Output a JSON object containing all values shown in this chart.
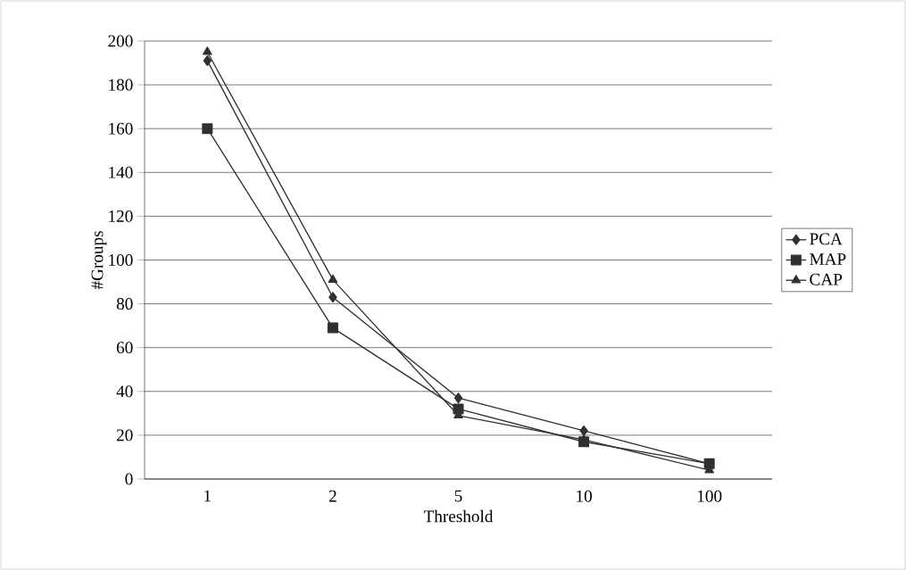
{
  "chart_data": {
    "type": "line",
    "xlabel": "Threshold",
    "ylabel": "#Groups",
    "categories": [
      "1",
      "2",
      "5",
      "10",
      "100"
    ],
    "series": [
      {
        "name": "PCA",
        "color": "#303030",
        "marker": "diamond",
        "values": [
          191,
          83,
          37,
          22,
          7
        ]
      },
      {
        "name": "MAP",
        "color": "#303030",
        "marker": "square",
        "values": [
          160,
          69,
          32,
          17,
          7
        ]
      },
      {
        "name": "CAP",
        "color": "#303030",
        "marker": "triangle",
        "values": [
          195,
          91,
          29,
          18,
          4
        ]
      }
    ],
    "ylim": [
      0,
      200
    ],
    "yticks": [
      0,
      20,
      40,
      60,
      80,
      100,
      120,
      140,
      160,
      180,
      200
    ],
    "grid": "y",
    "legend": "right",
    "line_style": "solid"
  }
}
